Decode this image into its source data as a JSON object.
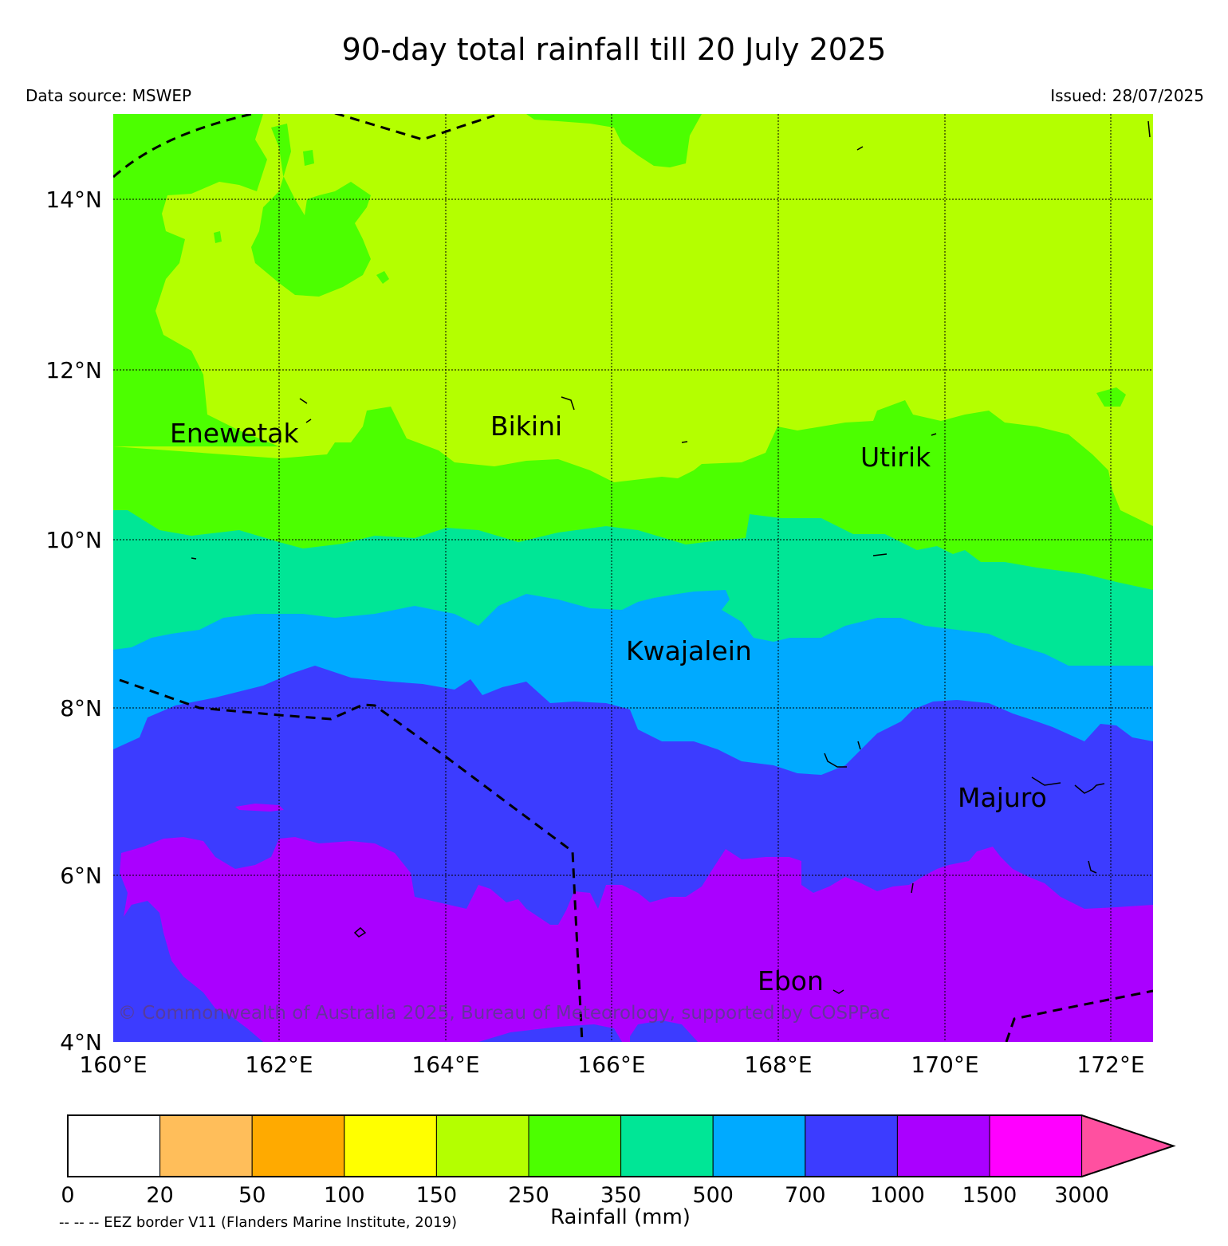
{
  "title": "90-day total rainfall till 20 July 2025",
  "data_source": "Data source: MSWEP",
  "issued": "Issued: 28/07/2025",
  "copyright": "© Commonwealth of Australia 2025, Bureau of Meteorology, supported by COSPPac",
  "eez_note": "-- -- -- EEZ border V11 (Flanders Marine Institute, 2019)",
  "map": {
    "lat_labels": [
      "14°N",
      "12°N",
      "10°N",
      "8°N",
      "6°N",
      "4°N"
    ],
    "lon_labels": [
      "160°E",
      "162°E",
      "164°E",
      "166°E",
      "168°E",
      "170°E",
      "172°E"
    ],
    "places": [
      "Enewetak",
      "Bikini",
      "Utirik",
      "Kwajalein",
      "Majuro",
      "Ebon"
    ]
  },
  "colorbar": {
    "title": "Rainfall (mm)",
    "ticks": [
      "0",
      "20",
      "50",
      "100",
      "150",
      "250",
      "350",
      "500",
      "700",
      "1000",
      "1500",
      "3000"
    ],
    "colors": [
      "#ffffff",
      "#ffbe5a",
      "#ffaa00",
      "#ffff00",
      "#b4ff00",
      "#4cff00",
      "#00e696",
      "#00aaff",
      "#3c3cff",
      "#aa00ff",
      "#ff00ff",
      "#ff50a0"
    ]
  }
}
